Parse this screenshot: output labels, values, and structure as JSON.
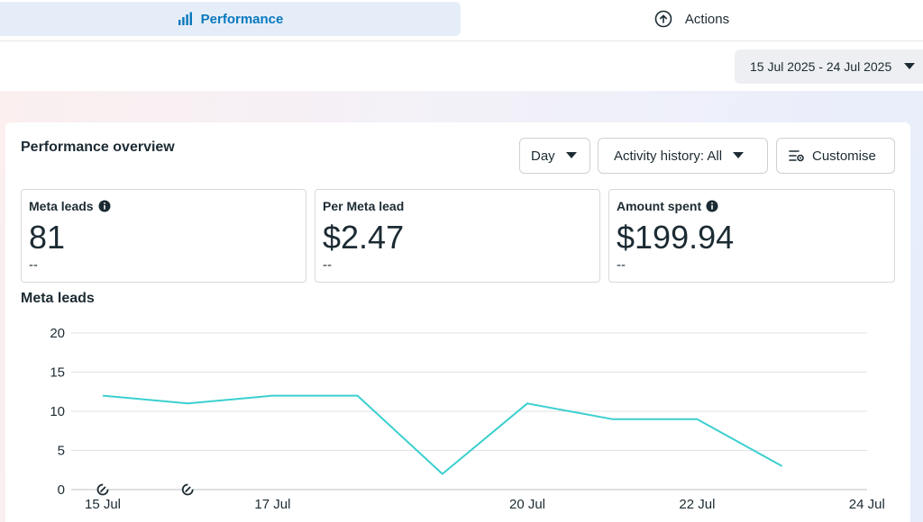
{
  "tabs": {
    "performance": {
      "label": "Performance",
      "icon": "bar-chart-icon"
    },
    "actions": {
      "label": "Actions",
      "icon": "arrow-up-circle-icon"
    }
  },
  "date_range": {
    "label": "15 Jul 2025 - 24 Jul 2025",
    "icon": "caret-down-icon"
  },
  "overview": {
    "title": "Performance overview",
    "controls": {
      "granularity": "Day",
      "activity": "Activity history: All",
      "customise": "Customise"
    }
  },
  "metrics": [
    {
      "label": "Meta leads",
      "value": "81",
      "sub": "--",
      "has_info": true
    },
    {
      "label": "Per Meta lead",
      "value": "$2.47",
      "sub": "--",
      "has_info": false
    },
    {
      "label": "Amount spent",
      "value": "$199.94",
      "sub": "--",
      "has_info": true
    }
  ],
  "colors": {
    "accent": "#0a78be",
    "line": "#3ccfcf",
    "tab_active_bg": "#e5eef8"
  },
  "chart_data": {
    "type": "line",
    "title": "Meta leads",
    "x": [
      "15 Jul",
      "16 Jul",
      "17 Jul",
      "18 Jul",
      "19 Jul",
      "20 Jul",
      "21 Jul",
      "22 Jul",
      "23 Jul"
    ],
    "series": [
      {
        "values": [
          12,
          11,
          12,
          12,
          2,
          11,
          9,
          9,
          3
        ]
      }
    ],
    "x_tick_labels": [
      "15 Jul",
      "17 Jul",
      "20 Jul",
      "22 Jul",
      "24 Jul"
    ],
    "y_ticks": [
      20,
      15,
      10,
      5,
      0
    ],
    "ylim": [
      0,
      20
    ],
    "grid": true,
    "event_markers": [
      "15 Jul",
      "16 Jul"
    ]
  }
}
